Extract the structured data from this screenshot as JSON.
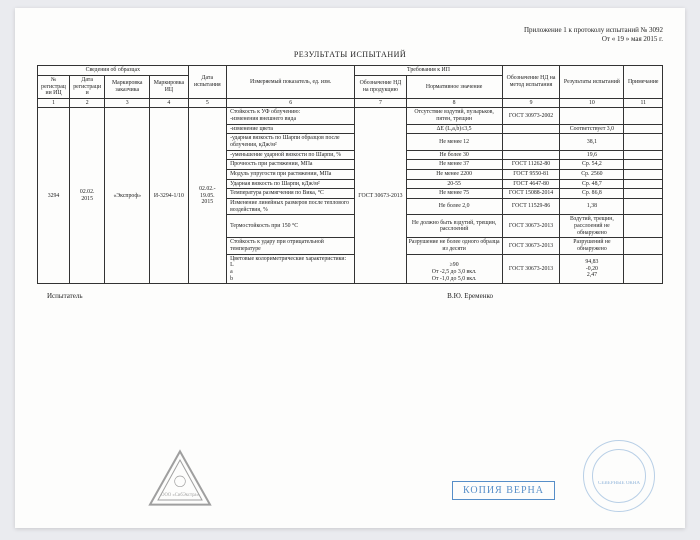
{
  "header": {
    "line1": "Приложение 1 к протоколу испытаний № 3092",
    "line2": "От « 19 » мая 2015 г."
  },
  "title": "РЕЗУЛЬТАТЫ ИСПЫТАНИЙ",
  "columns": {
    "grp1": "Сведения об образцах",
    "grp2": "Дата испытания",
    "grp3": "Измеряемый показатель, ед. изм.",
    "grp4": "Требования к ИП",
    "grp5": "Обозначение НД на метод испытания",
    "grp6": "Результаты испытаний",
    "grp7": "Примечание",
    "c1": "№ регистрации ИЦ",
    "c2": "Дата регистрации",
    "c3": "Маркировка заказчика",
    "c4": "Маркировка ИЦ",
    "c7": "Обозначение НД на продукцию",
    "c8": "Нормативное значение",
    "n1": "1",
    "n2": "2",
    "n3": "3",
    "n4": "4",
    "n5": "5",
    "n6": "6",
    "n7": "7",
    "n8": "8",
    "n9": "9",
    "n10": "10",
    "n11": "11"
  },
  "sample": {
    "reg_no": "3294",
    "reg_date": "02.02.\n2015",
    "customer_mark": "«Экспроф»",
    "ic_mark": "И-3294-1/10",
    "test_date": "02.02.-\n19.05.\n2015",
    "nd_product": "ГОСТ 30673-2013"
  },
  "rows": [
    {
      "param": "Стойкость к УФ облучению:\n-изменения внешнего вида",
      "norm": "Отсутствие вздутий, пузырьков, пятен, трещин",
      "nd": "ГОСТ 30973-2002",
      "res": "",
      "note": ""
    },
    {
      "param": "-изменение цвета",
      "norm": "ΔE (L,a,b)≤3,5",
      "nd": "",
      "res": "Соответствует 3,0",
      "note": ""
    },
    {
      "param": "-ударная вязкость по Шарпи образцов после облучения, кДж/м²",
      "norm": "Не менее 12",
      "nd": "",
      "res": "38,1",
      "note": ""
    },
    {
      "param": "-уменьшение ударной вязкости по Шарпи, %",
      "norm": "Не более 30",
      "nd": "",
      "res": "19,6",
      "note": ""
    },
    {
      "param": "Прочность при растяжении, МПа",
      "norm": "Не менее 37",
      "nd": "ГОСТ 11262-80",
      "res": "Ср. 54,2",
      "note": ""
    },
    {
      "param": "Модуль упругости при растяжении, МПа",
      "norm": "Не менее 2200",
      "nd": "ГОСТ 9550-81",
      "res": "Ср. 2560",
      "note": ""
    },
    {
      "param": "Ударная вязкость по Шарпи, кДж/м²",
      "norm": "20-55",
      "nd": "ГОСТ 4647-80",
      "res": "Ср. 48,7",
      "note": ""
    },
    {
      "param": "Температура размягчения по Вика, °С",
      "norm": "Не менее 75",
      "nd": "ГОСТ 15088-2014",
      "res": "Ср. 86,8",
      "note": ""
    },
    {
      "param": "Изменение линейных размеров после теплового воздействия, %",
      "norm": "Не более 2,0",
      "nd": "ГОСТ 11529-86",
      "res": "1,38",
      "note": ""
    },
    {
      "param": "Термостойкость при 150 °С",
      "norm": "Не должно быть вздутий, трещин, расслоений",
      "nd": "ГОСТ 30673-2013",
      "res": "Вздутий, трещин, расслоений не обнаружено",
      "note": ""
    },
    {
      "param": "Стойкость к удару при отрицательной температуре",
      "norm": "Разрушение не более одного образца из десяти",
      "nd": "ГОСТ 30673-2013",
      "res": "Разрушений не обнаружено",
      "note": ""
    },
    {
      "param": "Цветовые колориметрические характеристики:\nL\na\nb",
      "norm": "\n≥90\nОт -2,5 до 3,0 вкл.\nОт -1,0 до 5,0 вкл.",
      "nd": "ГОСТ 30673-2013",
      "res": "94,83\n-0,20\n2,47",
      "note": ""
    }
  ],
  "footer": {
    "tester": "Испытатель",
    "sign": "В.Ю. Еременко"
  },
  "stamps": {
    "copy": "КОПИЯ ВЕРНА",
    "round_text": "СЕВЕРНЫЕ ОКНА"
  }
}
